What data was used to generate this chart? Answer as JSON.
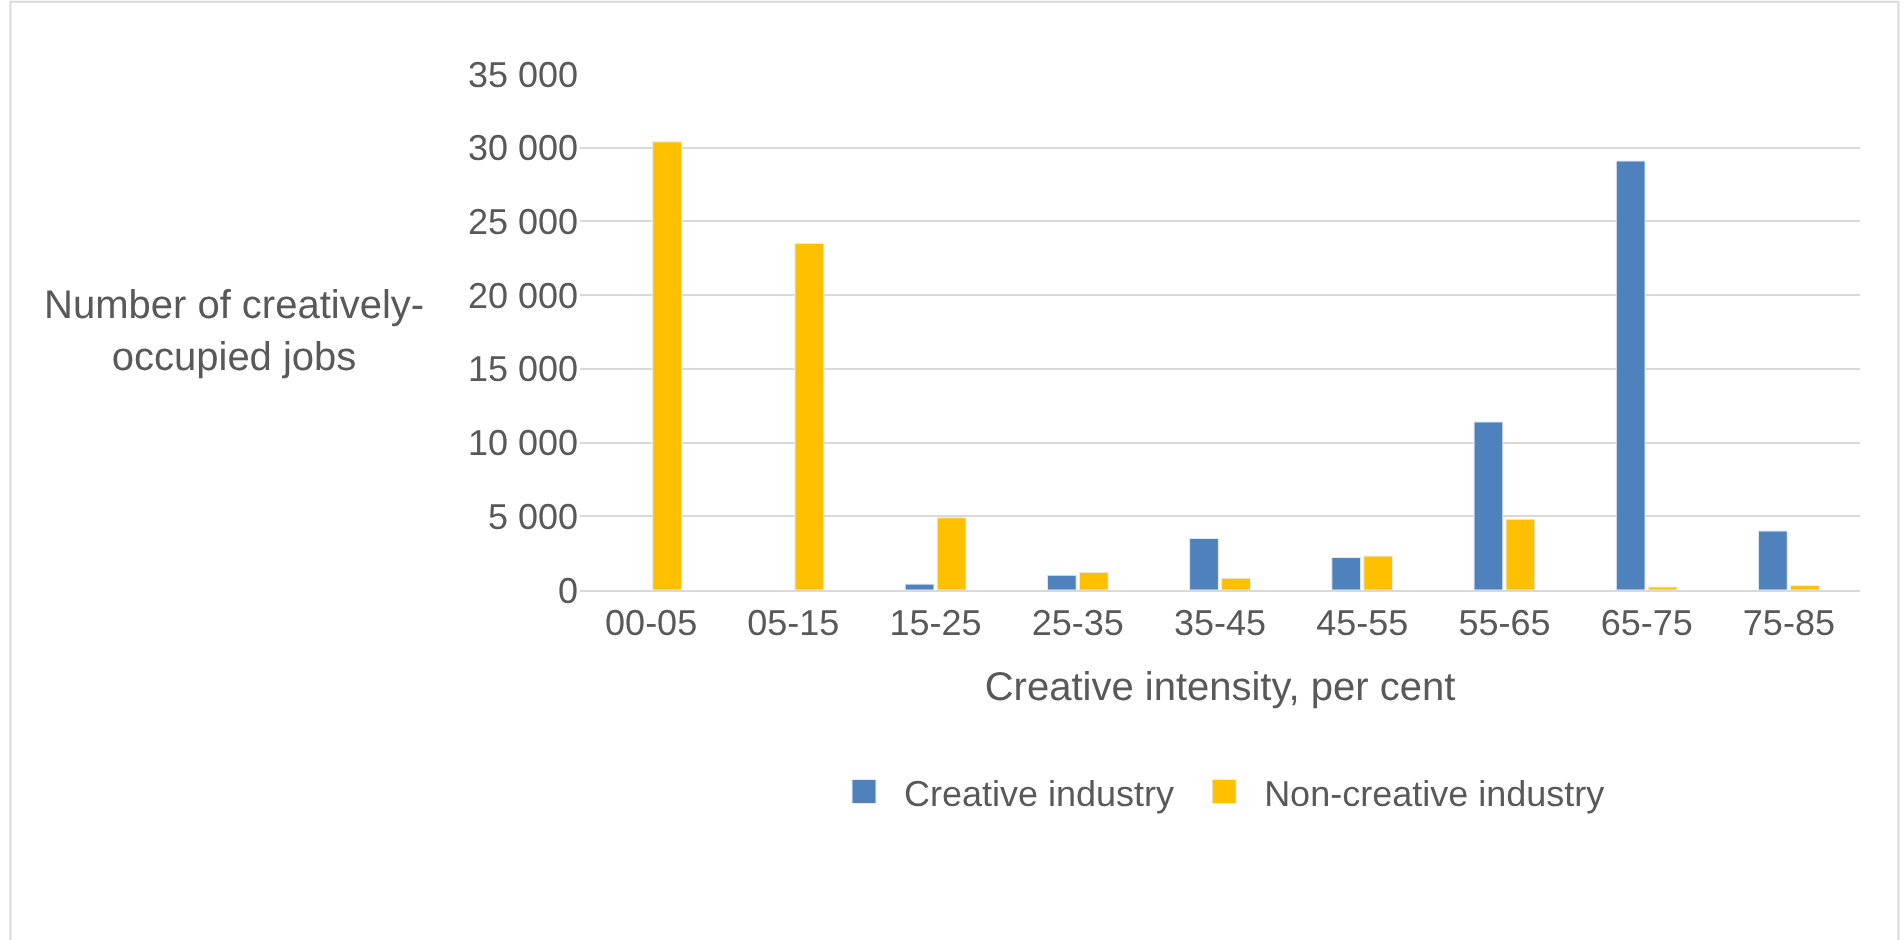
{
  "chart_data": {
    "type": "bar",
    "xlabel": "Creative intensity, per cent",
    "ylabel": "Number of creatively-\noccupied jobs",
    "categories": [
      "00-05",
      "05-15",
      "15-25",
      "25-35",
      "35-45",
      "45-55",
      "55-65",
      "65-75",
      "75-85"
    ],
    "series": [
      {
        "name": "Creative industry",
        "color": "#4f81bd",
        "values": [
          null,
          null,
          400,
          1000,
          3500,
          2200,
          11400,
          29100,
          4000
        ]
      },
      {
        "name": "Non-creative industry",
        "color": "#ffc000",
        "values": [
          30400,
          23500,
          4900,
          1200,
          800,
          2300,
          4800,
          200,
          300
        ]
      }
    ],
    "ylim": [
      0,
      35000
    ],
    "yticks": [
      {
        "value": 0,
        "label": "0"
      },
      {
        "value": 5000,
        "label": "5 000"
      },
      {
        "value": 10000,
        "label": "10 000"
      },
      {
        "value": 15000,
        "label": "15 000"
      },
      {
        "value": 20000,
        "label": "20 000"
      },
      {
        "value": 25000,
        "label": "25 000"
      },
      {
        "value": 30000,
        "label": "30 000"
      },
      {
        "value": 35000,
        "label": "35 000"
      }
    ],
    "grid": "y",
    "legend": "bottom"
  }
}
